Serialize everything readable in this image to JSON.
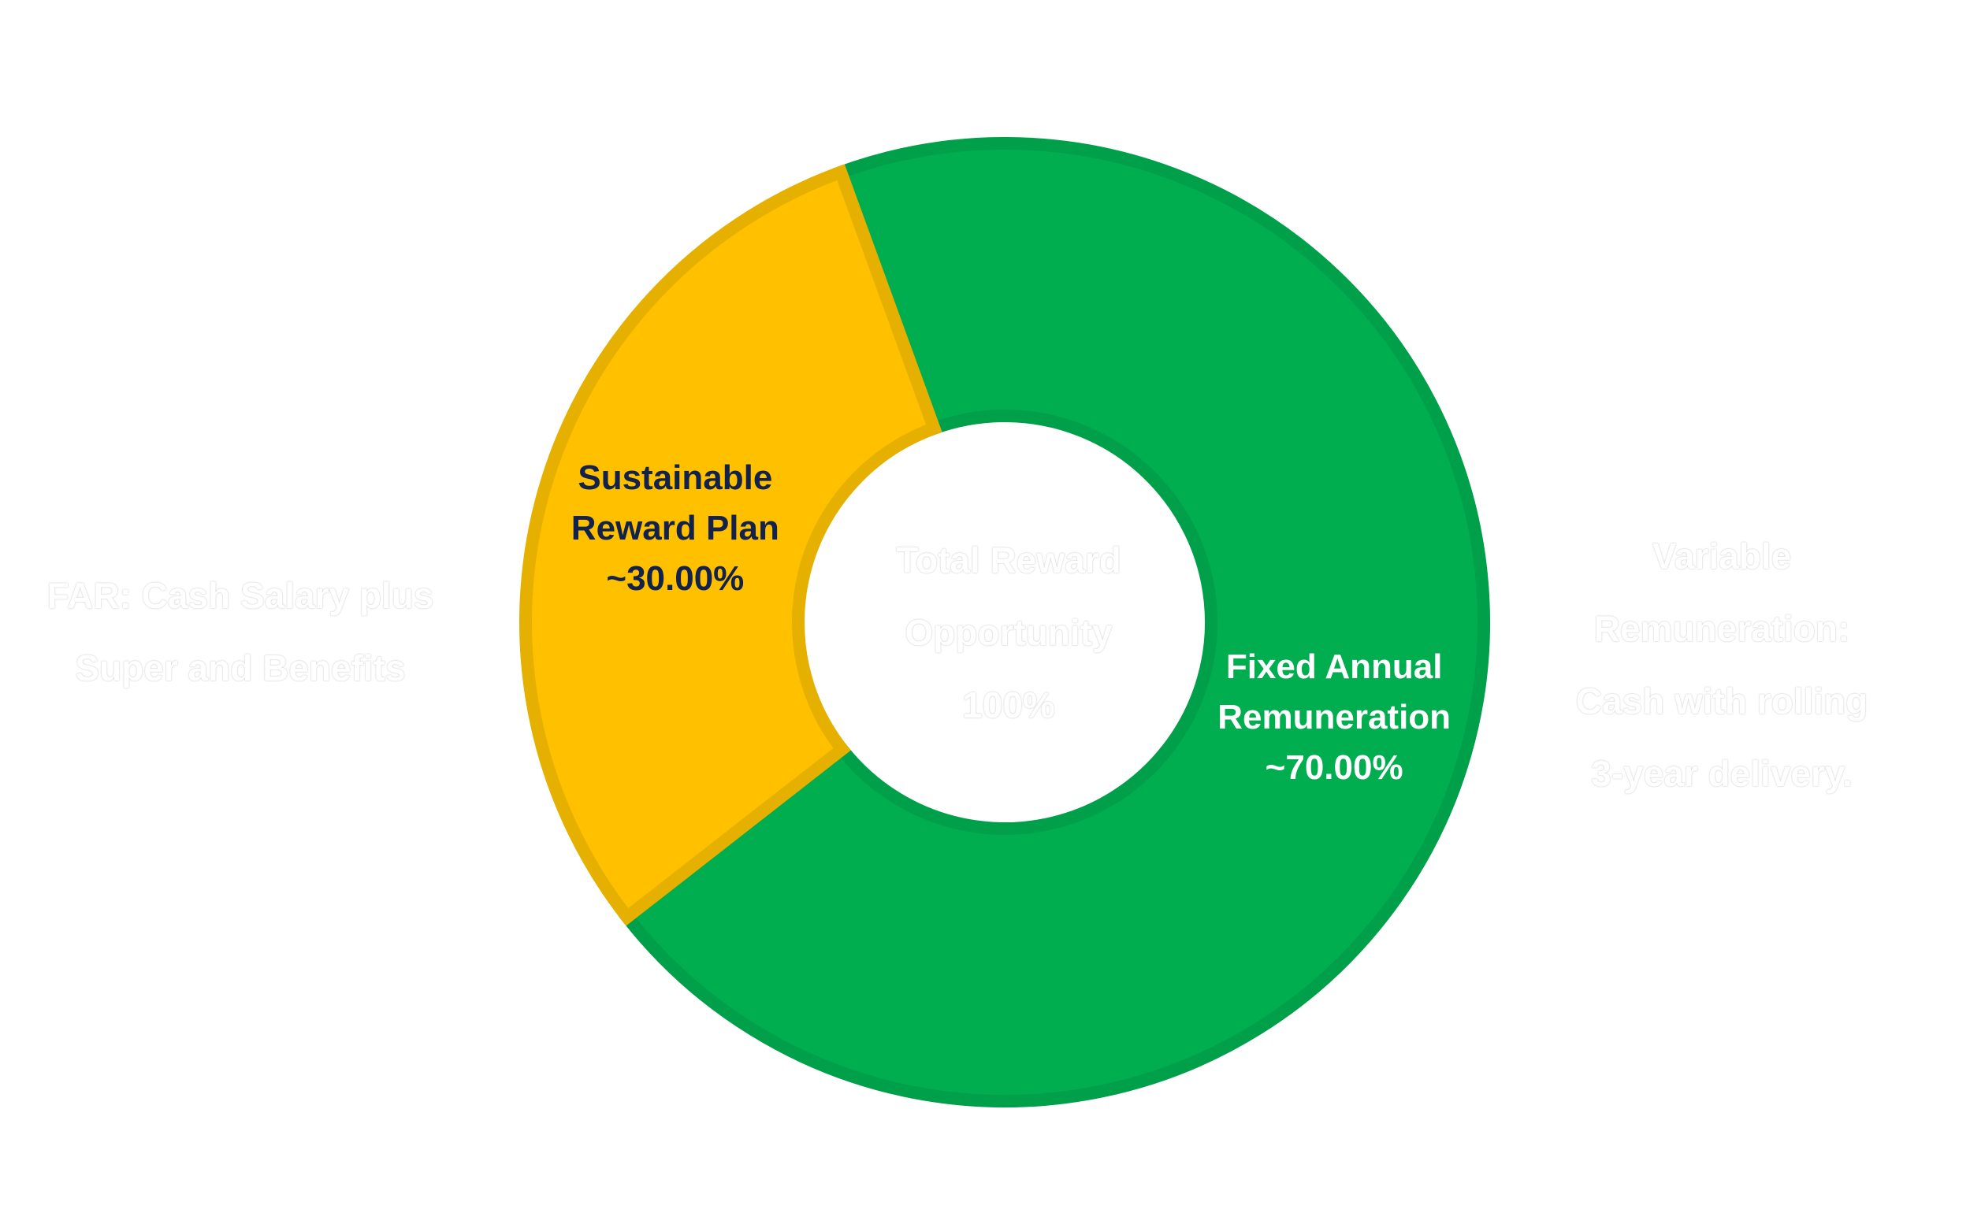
{
  "chart_data": {
    "type": "pie",
    "donut": true,
    "title": "",
    "center_label": [
      "Total Reward",
      "Opportunity",
      "100%"
    ],
    "slices": [
      {
        "label_lines": [
          "Fixed Annual",
          "Remuneration",
          "~70.00%"
        ],
        "value": 70,
        "fill": "#00AD4F",
        "stroke": "#00A04A",
        "label_color": "#ffffff"
      },
      {
        "label_lines": [
          "Sustainable",
          "Reward Plan",
          "~30.00%"
        ],
        "value": 30,
        "fill": "#FFC000",
        "stroke": "#E5B000",
        "label_color": "#12224A"
      }
    ],
    "annotations": {
      "left": [
        "FAR:  Cash Salary plus",
        "Super and Benefits"
      ],
      "right": [
        "Variable",
        "Remuneration:",
        "Cash with rolling",
        "3-year delivery."
      ]
    }
  }
}
